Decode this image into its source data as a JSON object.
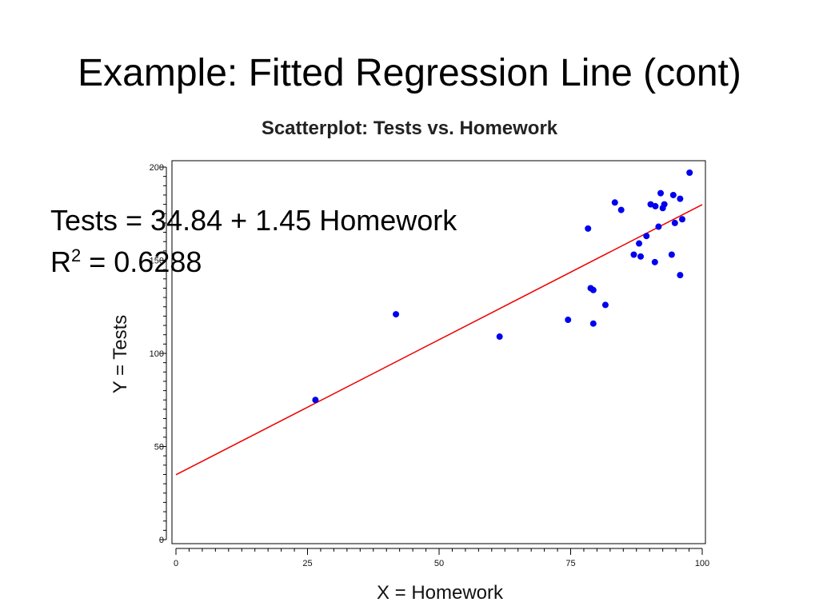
{
  "slide": {
    "title": "Example: Fitted Regression Line (cont)"
  },
  "equation": {
    "line1": "Tests = 34.84 + 1.45 Homework",
    "r_label": "R",
    "r_sup": "2",
    "r_value": " = 0.6288"
  },
  "colors": {
    "points": "#0000ee",
    "fit_line": "#ee0000",
    "axis": "#000000"
  },
  "chart_data": {
    "type": "scatter",
    "title": "Scatterplot: Tests vs. Homework",
    "xlabel": "X = Homework",
    "ylabel": "Y = Tests",
    "xlim": [
      0,
      100
    ],
    "ylim": [
      0,
      200
    ],
    "xticks": [
      0,
      25,
      50,
      75,
      100
    ],
    "yticks": [
      0,
      50,
      100,
      150,
      200
    ],
    "grid": false,
    "points": [
      {
        "x": 26.5,
        "y": 75
      },
      {
        "x": 41.8,
        "y": 121
      },
      {
        "x": 61.5,
        "y": 109
      },
      {
        "x": 74.5,
        "y": 118
      },
      {
        "x": 78.3,
        "y": 167
      },
      {
        "x": 78.8,
        "y": 135
      },
      {
        "x": 79.3,
        "y": 116
      },
      {
        "x": 79.3,
        "y": 134
      },
      {
        "x": 81.6,
        "y": 126
      },
      {
        "x": 83.4,
        "y": 181
      },
      {
        "x": 84.6,
        "y": 177
      },
      {
        "x": 87.0,
        "y": 153
      },
      {
        "x": 88.0,
        "y": 159
      },
      {
        "x": 88.3,
        "y": 152
      },
      {
        "x": 89.4,
        "y": 163
      },
      {
        "x": 90.2,
        "y": 180
      },
      {
        "x": 91.0,
        "y": 149
      },
      {
        "x": 91.1,
        "y": 179
      },
      {
        "x": 91.7,
        "y": 168
      },
      {
        "x": 92.1,
        "y": 186
      },
      {
        "x": 92.5,
        "y": 178
      },
      {
        "x": 92.8,
        "y": 180
      },
      {
        "x": 94.2,
        "y": 153
      },
      {
        "x": 94.5,
        "y": 185
      },
      {
        "x": 94.8,
        "y": 170
      },
      {
        "x": 95.8,
        "y": 142
      },
      {
        "x": 95.8,
        "y": 183
      },
      {
        "x": 96.2,
        "y": 172
      },
      {
        "x": 97.6,
        "y": 197
      }
    ],
    "fit": {
      "intercept": 34.84,
      "slope": 1.45
    }
  }
}
